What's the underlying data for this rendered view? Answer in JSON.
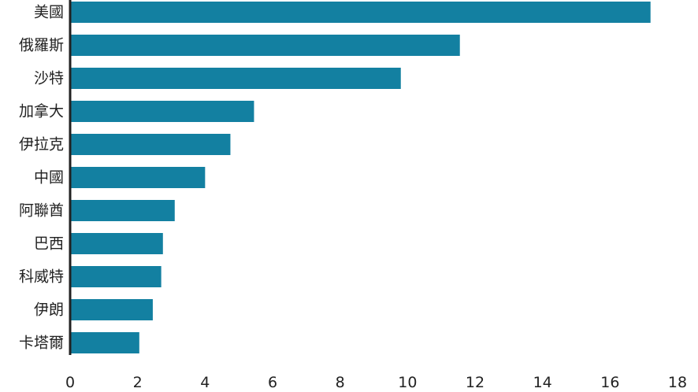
{
  "chart_data": {
    "type": "bar",
    "orientation": "horizontal",
    "title": "",
    "xlabel": "",
    "ylabel": "",
    "categories": [
      "美國",
      "俄羅斯",
      "沙特",
      "加拿大",
      "伊拉克",
      "中國",
      "阿聯酋",
      "巴西",
      "科威特",
      "伊朗",
      "卡塔爾"
    ],
    "values": [
      17.2,
      11.55,
      9.8,
      5.45,
      4.75,
      4.0,
      3.1,
      2.75,
      2.7,
      2.45,
      2.05
    ],
    "xlim": [
      0,
      18
    ],
    "xticks": [
      "0",
      "2",
      "4",
      "6",
      "8",
      "10",
      "12",
      "14",
      "16",
      "18"
    ],
    "grid": false,
    "legend": "none",
    "bar_color": "#1380a1",
    "axis_color": "#222222"
  }
}
